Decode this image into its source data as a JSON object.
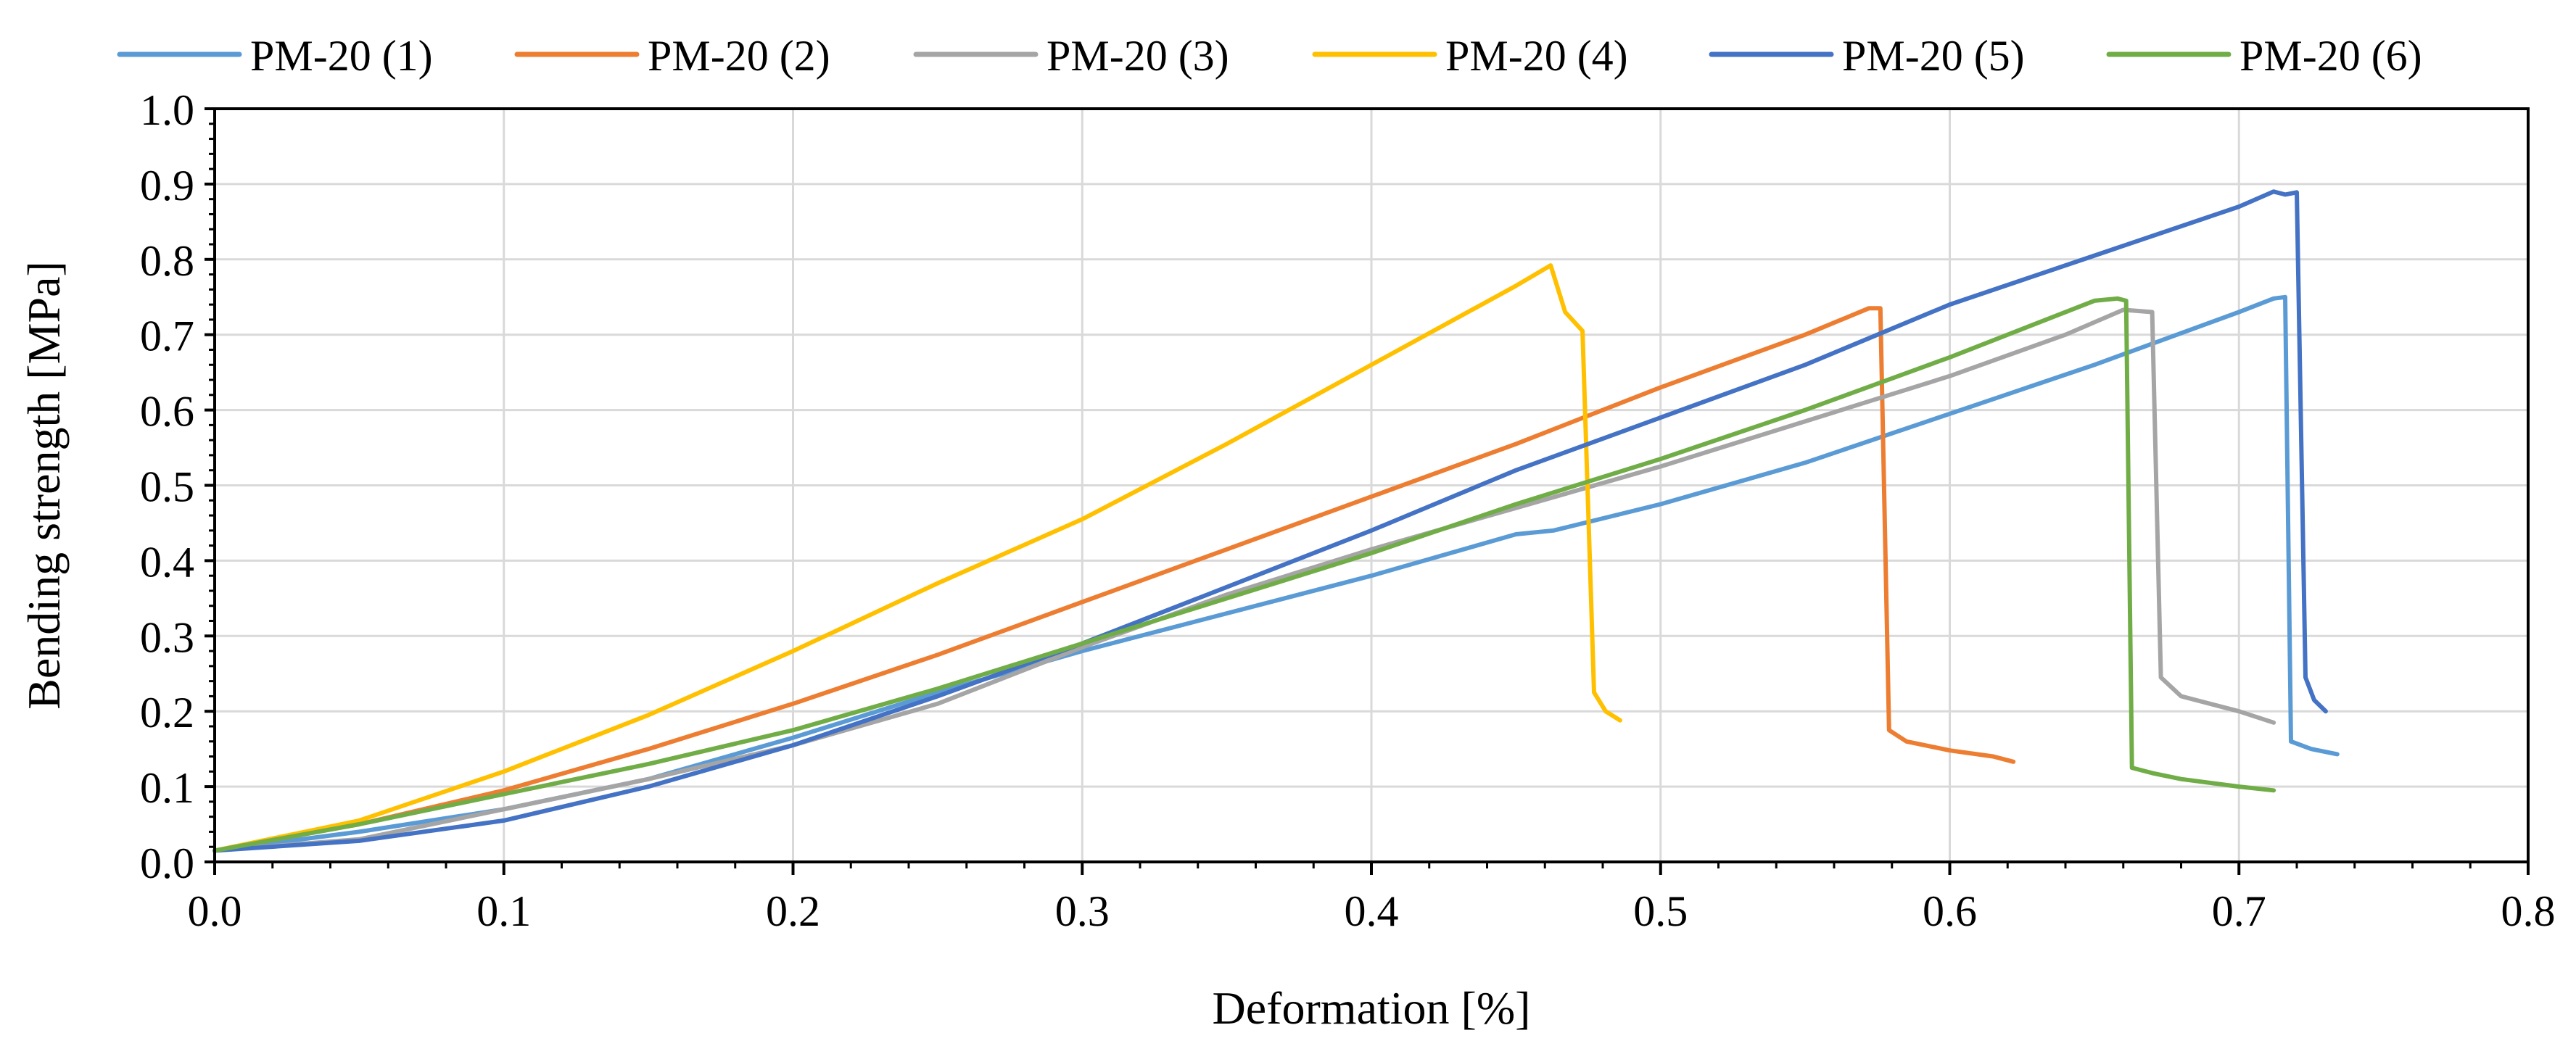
{
  "chart_data": {
    "type": "line",
    "title": "",
    "xlabel": "Deformation [%]",
    "ylabel": "Bending strength [MPa]",
    "xlim": [
      0.0,
      0.8
    ],
    "ylim": [
      0.0,
      1.0
    ],
    "xticks": [
      0.0,
      0.1,
      0.2,
      0.3,
      0.4,
      0.5,
      0.6,
      0.7,
      0.8
    ],
    "xtick_labels": [
      "0.0",
      "0.1",
      "0.2",
      "0.3",
      "0.4",
      "0.5",
      "0.6",
      "0.7",
      "0.8"
    ],
    "yticks": [
      0.0,
      0.1,
      0.2,
      0.3,
      0.4,
      0.5,
      0.6,
      0.7,
      0.8,
      0.9,
      1.0
    ],
    "ytick_labels": [
      "0.0",
      "0.1",
      "0.2",
      "0.3",
      "0.4",
      "0.5",
      "0.6",
      "0.7",
      "0.8",
      "0.9",
      "1.0"
    ],
    "grid": true,
    "legend_position": "top",
    "series": [
      {
        "name": "PM-20 (1)",
        "color": "#5B9BD5",
        "points": [
          [
            0.0,
            0.015
          ],
          [
            0.05,
            0.04
          ],
          [
            0.1,
            0.07
          ],
          [
            0.15,
            0.11
          ],
          [
            0.2,
            0.165
          ],
          [
            0.25,
            0.225
          ],
          [
            0.3,
            0.28
          ],
          [
            0.35,
            0.33
          ],
          [
            0.4,
            0.38
          ],
          [
            0.45,
            0.435
          ],
          [
            0.463,
            0.44
          ],
          [
            0.5,
            0.475
          ],
          [
            0.55,
            0.53
          ],
          [
            0.6,
            0.595
          ],
          [
            0.65,
            0.66
          ],
          [
            0.7,
            0.73
          ],
          [
            0.712,
            0.748
          ],
          [
            0.716,
            0.75
          ],
          [
            0.718,
            0.16
          ],
          [
            0.725,
            0.15
          ],
          [
            0.734,
            0.143
          ]
        ]
      },
      {
        "name": "PM-20 (2)",
        "color": "#ED7D31",
        "points": [
          [
            0.0,
            0.015
          ],
          [
            0.05,
            0.05
          ],
          [
            0.1,
            0.095
          ],
          [
            0.15,
            0.15
          ],
          [
            0.2,
            0.21
          ],
          [
            0.25,
            0.275
          ],
          [
            0.3,
            0.345
          ],
          [
            0.35,
            0.415
          ],
          [
            0.4,
            0.485
          ],
          [
            0.45,
            0.555
          ],
          [
            0.5,
            0.63
          ],
          [
            0.55,
            0.7
          ],
          [
            0.572,
            0.735
          ],
          [
            0.576,
            0.735
          ],
          [
            0.579,
            0.175
          ],
          [
            0.585,
            0.16
          ],
          [
            0.6,
            0.148
          ],
          [
            0.615,
            0.14
          ],
          [
            0.622,
            0.133
          ]
        ]
      },
      {
        "name": "PM-20 (3)",
        "color": "#A5A5A5",
        "points": [
          [
            0.0,
            0.015
          ],
          [
            0.05,
            0.03
          ],
          [
            0.1,
            0.07
          ],
          [
            0.15,
            0.11
          ],
          [
            0.2,
            0.155
          ],
          [
            0.25,
            0.21
          ],
          [
            0.3,
            0.285
          ],
          [
            0.35,
            0.355
          ],
          [
            0.4,
            0.415
          ],
          [
            0.45,
            0.47
          ],
          [
            0.5,
            0.525
          ],
          [
            0.55,
            0.585
          ],
          [
            0.6,
            0.645
          ],
          [
            0.64,
            0.7
          ],
          [
            0.66,
            0.733
          ],
          [
            0.67,
            0.73
          ],
          [
            0.673,
            0.245
          ],
          [
            0.68,
            0.22
          ],
          [
            0.7,
            0.2
          ],
          [
            0.712,
            0.185
          ]
        ]
      },
      {
        "name": "PM-20 (4)",
        "color": "#FFC000",
        "points": [
          [
            0.0,
            0.015
          ],
          [
            0.05,
            0.055
          ],
          [
            0.1,
            0.12
          ],
          [
            0.15,
            0.195
          ],
          [
            0.2,
            0.28
          ],
          [
            0.25,
            0.37
          ],
          [
            0.3,
            0.455
          ],
          [
            0.35,
            0.555
          ],
          [
            0.4,
            0.66
          ],
          [
            0.45,
            0.765
          ],
          [
            0.462,
            0.792
          ],
          [
            0.467,
            0.73
          ],
          [
            0.473,
            0.705
          ],
          [
            0.477,
            0.225
          ],
          [
            0.481,
            0.2
          ],
          [
            0.486,
            0.188
          ]
        ]
      },
      {
        "name": "PM-20 (5)",
        "color": "#4472C4",
        "points": [
          [
            0.0,
            0.015
          ],
          [
            0.05,
            0.028
          ],
          [
            0.1,
            0.055
          ],
          [
            0.15,
            0.1
          ],
          [
            0.2,
            0.155
          ],
          [
            0.25,
            0.22
          ],
          [
            0.3,
            0.29
          ],
          [
            0.35,
            0.365
          ],
          [
            0.4,
            0.44
          ],
          [
            0.45,
            0.52
          ],
          [
            0.5,
            0.59
          ],
          [
            0.55,
            0.66
          ],
          [
            0.6,
            0.74
          ],
          [
            0.65,
            0.805
          ],
          [
            0.7,
            0.87
          ],
          [
            0.712,
            0.89
          ],
          [
            0.716,
            0.886
          ],
          [
            0.72,
            0.889
          ],
          [
            0.723,
            0.245
          ],
          [
            0.726,
            0.215
          ],
          [
            0.73,
            0.2
          ]
        ]
      },
      {
        "name": "PM-20 (6)",
        "color": "#70AD47",
        "points": [
          [
            0.0,
            0.015
          ],
          [
            0.05,
            0.05
          ],
          [
            0.1,
            0.09
          ],
          [
            0.15,
            0.13
          ],
          [
            0.2,
            0.175
          ],
          [
            0.25,
            0.23
          ],
          [
            0.3,
            0.29
          ],
          [
            0.35,
            0.35
          ],
          [
            0.4,
            0.41
          ],
          [
            0.45,
            0.475
          ],
          [
            0.5,
            0.535
          ],
          [
            0.55,
            0.6
          ],
          [
            0.6,
            0.67
          ],
          [
            0.65,
            0.745
          ],
          [
            0.658,
            0.748
          ],
          [
            0.661,
            0.745
          ],
          [
            0.663,
            0.125
          ],
          [
            0.67,
            0.118
          ],
          [
            0.68,
            0.11
          ],
          [
            0.7,
            0.1
          ],
          [
            0.712,
            0.095
          ]
        ]
      }
    ]
  }
}
